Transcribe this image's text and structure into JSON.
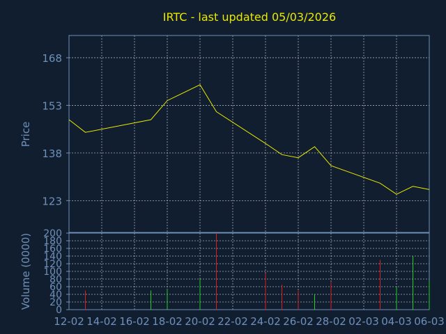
{
  "chart_data": [
    {
      "type": "line",
      "title": "IRTC - last updated 05/03/2026",
      "ylabel": "Price",
      "xlabel": "",
      "ylim": [
        113,
        175
      ],
      "yticks": [
        123,
        138,
        153,
        168
      ],
      "grid": true,
      "line_color": "#e8e800",
      "series": [
        {
          "x": [
            "12-02",
            "13-02",
            "17-02",
            "18-02",
            "20-02",
            "21-02",
            "24-02",
            "25-02",
            "26-02",
            "27-02",
            "28-02",
            "03-03",
            "04-03",
            "05-03",
            "06-03"
          ],
          "values": [
            148.5,
            144.5,
            148.5,
            154.5,
            159.5,
            151.0,
            141.0,
            137.5,
            136.5,
            140.0,
            134.0,
            128.5,
            125.0,
            127.5,
            126.5
          ]
        }
      ]
    },
    {
      "type": "bar",
      "ylabel": "Volume (0000)",
      "ylim": [
        0,
        200
      ],
      "yticks": [
        0,
        20,
        40,
        60,
        80,
        100,
        120,
        140,
        160,
        180,
        200
      ],
      "grid": true,
      "x_tick_labels": [
        "12-02",
        "14-02",
        "16-02",
        "18-02",
        "20-02",
        "22-02",
        "24-02",
        "26-02",
        "28-02",
        "02-03",
        "04-03",
        "06-03"
      ],
      "up_color": "#1fd01f",
      "down_color": "#e01c1c",
      "bars": [
        {
          "x": "13-02",
          "value": 50,
          "direction": "down"
        },
        {
          "x": "17-02",
          "value": 50,
          "direction": "up"
        },
        {
          "x": "18-02",
          "value": 55,
          "direction": "up"
        },
        {
          "x": "20-02",
          "value": 80,
          "direction": "up"
        },
        {
          "x": "21-02",
          "value": 200,
          "direction": "down"
        },
        {
          "x": "24-02",
          "value": 95,
          "direction": "down"
        },
        {
          "x": "25-02",
          "value": 65,
          "direction": "down"
        },
        {
          "x": "26-02",
          "value": 50,
          "direction": "down"
        },
        {
          "x": "27-02",
          "value": 40,
          "direction": "up"
        },
        {
          "x": "28-02",
          "value": 72,
          "direction": "down"
        },
        {
          "x": "03-03",
          "value": 130,
          "direction": "down"
        },
        {
          "x": "04-03",
          "value": 60,
          "direction": "up"
        },
        {
          "x": "05-03",
          "value": 140,
          "direction": "up"
        },
        {
          "x": "06-03",
          "value": 75,
          "direction": "up"
        }
      ]
    }
  ]
}
